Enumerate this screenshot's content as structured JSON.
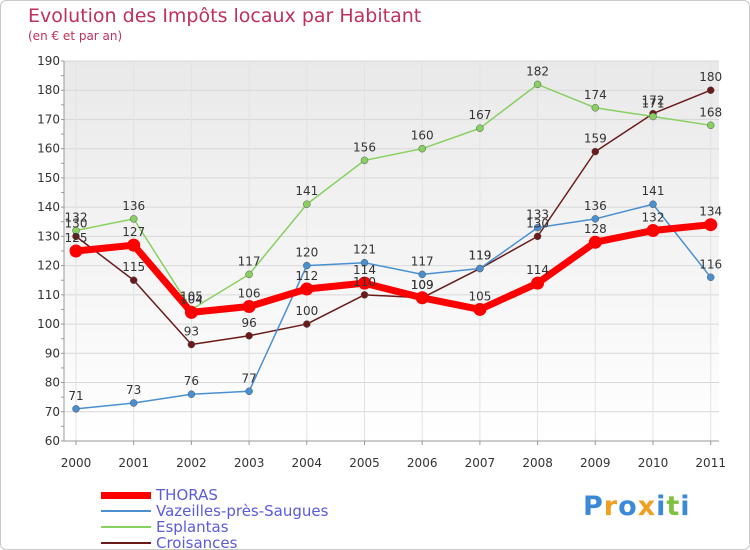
{
  "header": {
    "title": "Evolution des Impôts locaux par Habitant",
    "subtitle": "(en € et par an)"
  },
  "logo": {
    "text": "Proxiti"
  },
  "chart_data": {
    "type": "line",
    "title": "Evolution des Impôts locaux par Habitant",
    "subtitle": "(en € et par an)",
    "x": [
      "2000",
      "2001",
      "2002",
      "2003",
      "2004",
      "2005",
      "2006",
      "2007",
      "2008",
      "2009",
      "2010",
      "2011"
    ],
    "ylim": [
      60,
      190
    ],
    "yticks": [
      60,
      70,
      80,
      90,
      100,
      110,
      120,
      130,
      140,
      150,
      160,
      170,
      180,
      190
    ],
    "grid": true,
    "legend_position": "bottom-left",
    "series": [
      {
        "name": "THORAS",
        "color": "#ff0000",
        "values": [
          125,
          127,
          104,
          106,
          112,
          114,
          109,
          105,
          114,
          128,
          132,
          134
        ]
      },
      {
        "name": "Vazeilles-près-Saugues",
        "color": "#4a90d0",
        "values": [
          71,
          73,
          76,
          77,
          120,
          121,
          117,
          119,
          133,
          136,
          141,
          116
        ]
      },
      {
        "name": "Esplantas",
        "color": "#88d060",
        "values": [
          132,
          136,
          105,
          117,
          141,
          156,
          160,
          167,
          182,
          174,
          171,
          168
        ]
      },
      {
        "name": "Croisances",
        "color": "#6b1a1a",
        "values": [
          130,
          115,
          93,
          96,
          100,
          110,
          109,
          119,
          130,
          159,
          172,
          180
        ]
      }
    ]
  }
}
